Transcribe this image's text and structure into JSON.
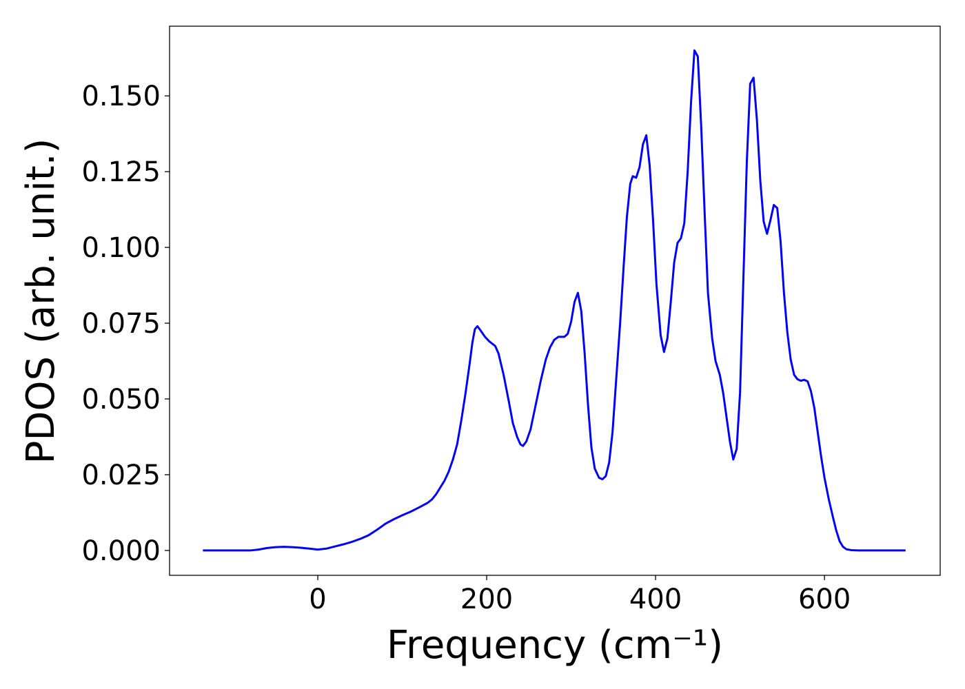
{
  "chart_data": {
    "type": "line",
    "xlabel": "Frequency (cm⁻¹)",
    "ylabel": "PDOS (arb. unit.)",
    "x": [
      -136,
      -80,
      -70,
      -60,
      -50,
      -40,
      -30,
      -20,
      -10,
      0,
      10,
      20,
      30,
      40,
      50,
      60,
      70,
      80,
      90,
      100,
      110,
      120,
      130,
      135,
      140,
      150,
      155,
      160,
      165,
      170,
      175,
      180,
      183,
      186,
      189,
      193,
      198,
      203,
      210,
      214,
      220,
      226,
      231,
      236,
      240,
      243,
      247,
      252,
      258,
      264,
      270,
      275,
      280,
      285,
      292,
      296,
      300,
      304,
      308,
      312,
      316,
      320,
      324,
      328,
      333,
      337,
      341,
      345,
      349,
      353,
      358,
      362,
      366,
      370,
      373,
      377,
      381,
      385,
      389,
      393,
      397,
      401,
      406,
      410,
      414,
      418,
      422,
      426,
      430,
      434,
      438,
      442,
      446,
      450,
      454,
      458,
      462,
      467,
      471,
      476,
      480,
      484,
      488,
      492,
      496,
      500,
      504,
      508,
      512,
      516,
      520,
      524,
      528,
      532,
      536,
      540,
      544,
      548,
      552,
      556,
      560,
      564,
      568,
      572,
      576,
      580,
      584,
      588,
      592,
      596,
      600,
      605,
      610,
      614,
      618,
      622,
      626,
      632,
      640,
      696
    ],
    "series": [
      {
        "color": "#0000ff",
        "values": [
          0,
          0,
          0.0003,
          0.0008,
          0.0011,
          0.0012,
          0.0011,
          0.0009,
          0.0006,
          0.0003,
          0.0006,
          0.0013,
          0.002,
          0.0028,
          0.0038,
          0.005,
          0.0068,
          0.0088,
          0.0103,
          0.0116,
          0.0128,
          0.0142,
          0.0157,
          0.0168,
          0.0185,
          0.023,
          0.026,
          0.03,
          0.035,
          0.043,
          0.052,
          0.062,
          0.0685,
          0.073,
          0.074,
          0.0725,
          0.0705,
          0.069,
          0.0675,
          0.065,
          0.058,
          0.0495,
          0.042,
          0.0375,
          0.035,
          0.0345,
          0.036,
          0.04,
          0.048,
          0.056,
          0.063,
          0.067,
          0.0695,
          0.0705,
          0.0705,
          0.0715,
          0.0755,
          0.082,
          0.085,
          0.079,
          0.065,
          0.048,
          0.034,
          0.027,
          0.024,
          0.0235,
          0.0245,
          0.029,
          0.039,
          0.055,
          0.075,
          0.093,
          0.11,
          0.121,
          0.1235,
          0.123,
          0.1265,
          0.134,
          0.137,
          0.127,
          0.109,
          0.088,
          0.071,
          0.0655,
          0.07,
          0.082,
          0.095,
          0.1015,
          0.103,
          0.108,
          0.125,
          0.148,
          0.165,
          0.163,
          0.14,
          0.112,
          0.085,
          0.07,
          0.0625,
          0.058,
          0.052,
          0.044,
          0.036,
          0.03,
          0.0335,
          0.052,
          0.09,
          0.128,
          0.154,
          0.156,
          0.142,
          0.122,
          0.1085,
          0.1045,
          0.109,
          0.114,
          0.113,
          0.102,
          0.085,
          0.072,
          0.063,
          0.058,
          0.0565,
          0.056,
          0.0563,
          0.0558,
          0.0525,
          0.047,
          0.039,
          0.031,
          0.024,
          0.017,
          0.011,
          0.0065,
          0.003,
          0.0012,
          0.0004,
          0.0001,
          0,
          0
        ]
      }
    ],
    "xlim": [
      -175.5,
      737
    ],
    "ylim": [
      -0.0082,
      0.173
    ],
    "xticks": [
      0,
      200,
      400,
      600
    ],
    "yticks": [
      {
        "value": 0,
        "label": "0.000"
      },
      {
        "value": 0.025,
        "label": "0.025"
      },
      {
        "value": 0.05,
        "label": "0.050"
      },
      {
        "value": 0.075,
        "label": "0.075"
      },
      {
        "value": 0.1,
        "label": "0.100"
      },
      {
        "value": 0.125,
        "label": "0.125"
      },
      {
        "value": 0.15,
        "label": "0.150"
      }
    ]
  }
}
